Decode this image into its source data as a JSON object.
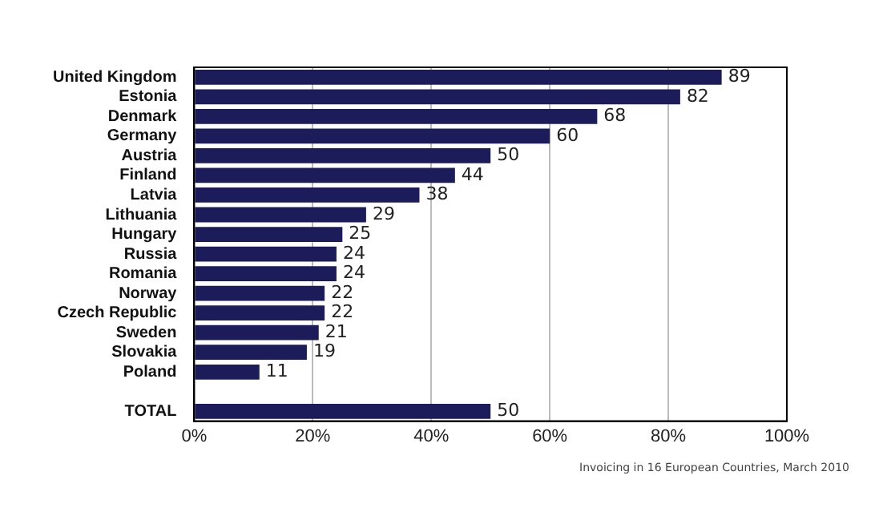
{
  "chart_data": {
    "type": "bar",
    "orientation": "horizontal",
    "categories": [
      "United Kingdom",
      "Estonia",
      "Denmark",
      "Germany",
      "Austria",
      "Finland",
      "Latvia",
      "Lithuania",
      "Hungary",
      "Russia",
      "Romania",
      "Norway",
      "Czech Republic",
      "Sweden",
      "Slovakia",
      "Poland",
      null,
      "TOTAL"
    ],
    "values": [
      89,
      82,
      68,
      60,
      50,
      44,
      38,
      29,
      25,
      24,
      24,
      22,
      22,
      21,
      19,
      11,
      null,
      50
    ],
    "color": "#1c1c5a",
    "xlim": [
      0,
      100
    ],
    "xticks": [
      {
        "value": 0,
        "label": "0%"
      },
      {
        "value": 20,
        "label": "20%"
      },
      {
        "value": 40,
        "label": "40%"
      },
      {
        "value": 60,
        "label": "60%"
      },
      {
        "value": 80,
        "label": "80%"
      },
      {
        "value": 100,
        "label": "100%"
      }
    ],
    "grid": "x",
    "data_labels": true,
    "legend": false,
    "annotations": [
      "Invoicing in 16 European Countries, March 2010"
    ]
  }
}
